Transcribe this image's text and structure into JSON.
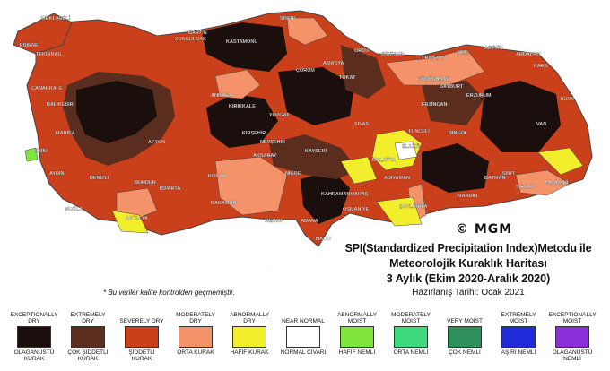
{
  "map": {
    "title_line1": "SPI(Standardized Precipitation Index)Metodu ile",
    "title_line2": "Meteorolojik Kuraklık Haritası",
    "title_line3": "3 Aylık (Ekim 2020-Aralık 2020)",
    "prepared_date": "Hazırlanış Tarihi: Ocak 2021",
    "copyright": "© MGM",
    "note": "* Bu veriler kalite kontrolden geçmemiştir.",
    "cities": [
      "SİNOP",
      "ZONGULDAK",
      "KASTAMONU",
      "ÇORUM",
      "AMASYA",
      "TOKAT",
      "ORDU",
      "GİRESUN",
      "TRABZON",
      "RİZE",
      "ARTVİN",
      "ARDAHAN",
      "KARS",
      "IĞDIR",
      "GÜMÜŞHANE",
      "BAYBURT",
      "ERZURUM",
      "ERZİNCAN",
      "TUNCELİ",
      "BİNGÖL",
      "ELAZIĞ",
      "MALATYA",
      "ADIYAMAN",
      "ŞANLIURFA",
      "MARDİN",
      "BATMAN",
      "SİİRT",
      "ŞIRNAK",
      "HAKKARİ",
      "VAN",
      "ANKARA",
      "KIRIKKALE",
      "AFYON",
      "KONYA",
      "NİĞDE",
      "ADANA",
      "MERSİN",
      "KAHRAMANMARAŞ",
      "OSMANİYE",
      "HATAY",
      "ANTALYA",
      "ISPARTA",
      "BURDUR",
      "DENİZLİ",
      "AYDIN",
      "MUĞLA",
      "İZMİR",
      "MANİSA",
      "BALIKESİR",
      "ÇANAKKALE",
      "EDİRNE",
      "KIRKLARELİ",
      "TEKİRDAĞ",
      "BARTIN",
      "KARAMAN",
      "AKSARAY",
      "KAYSERİ",
      "SİVAS",
      "YOZGAT",
      "KIRŞEHİR",
      "NEVŞEHİR"
    ]
  },
  "legend": [
    {
      "top": "EXCEPTIONALLY DRY",
      "bottom": "OLAĞANÜSTÜ KURAK",
      "color": "#1a0f0c"
    },
    {
      "top": "EXTREMELY DRY",
      "bottom": "ÇOK ŞİDDETLİ KURAK",
      "color": "#5a2d1e"
    },
    {
      "top": "SEVERELY DRY",
      "bottom": "ŞİDDETLİ KURAK",
      "color": "#c9401b"
    },
    {
      "top": "MODERATELY DRY",
      "bottom": "ORTA KURAK",
      "color": "#f4936a"
    },
    {
      "top": "ABNORMALLY DRY",
      "bottom": "HAFİF KURAK",
      "color": "#f2ee2c"
    },
    {
      "top": "NEAR NORMAL",
      "bottom": "NORMAL CİVARI",
      "color": "#ffffff"
    },
    {
      "top": "ABNORMALLY MOIST",
      "bottom": "HAFİF NEMLİ",
      "color": "#7fe53a"
    },
    {
      "top": "MODERATELY MOIST",
      "bottom": "ORTA NEMLİ",
      "color": "#3dd97a"
    },
    {
      "top": "VERY MOIST",
      "bottom": "ÇOK NEMLİ",
      "color": "#2f8f5a"
    },
    {
      "top": "EXTREMELY MOIST",
      "bottom": "AŞIRI NEMLİ",
      "color": "#1f2bd9"
    },
    {
      "top": "EXCEPTIONALLY MOIST",
      "bottom": "OLAĞANÜSTÜ NEMLİ",
      "color": "#8b2fd9"
    }
  ]
}
